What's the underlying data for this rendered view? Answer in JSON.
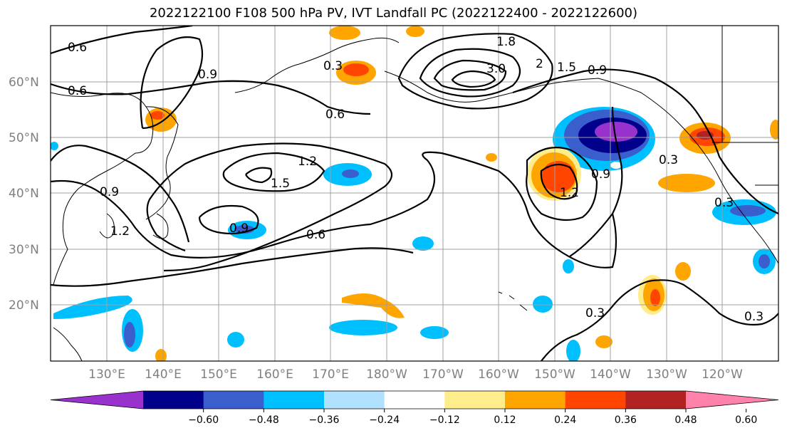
{
  "title": "2022122100 F108 500 hPa PV, IVT Landfall PC (2022122400 - 2022122600)",
  "map": {
    "lat_labels": [
      "60°N",
      "50°N",
      "40°N",
      "30°N",
      "20°N"
    ],
    "lon_labels": [
      "130°E",
      "140°E",
      "150°E",
      "160°E",
      "170°E",
      "180°W",
      "170°W",
      "160°W",
      "150°W",
      "140°W",
      "130°W",
      "120°W"
    ],
    "contour_labels": [
      "0.6",
      "0.6",
      "0.6",
      "0.6",
      "0.3",
      "0.9",
      "0.9",
      "0.9",
      "1.2",
      "1.2",
      "1.5",
      "1.5",
      "1.8",
      "3.0",
      "2",
      "0.9",
      "0.3",
      "0.3",
      "0.3",
      "0.9",
      "1.2",
      "0.3"
    ]
  },
  "colorbar": {
    "ticks": [
      "−0.60",
      "−0.48",
      "−0.36",
      "−0.24",
      "−0.12",
      "0.12",
      "0.24",
      "0.36",
      "0.48",
      "0.60"
    ],
    "colors": [
      "#9932cc",
      "#00008b",
      "#3a5fcd",
      "#00bfff",
      "#b0e2ff",
      "#ffffff",
      "#ffec8b",
      "#ffa500",
      "#ff4500",
      "#b22222",
      "#ff82ab"
    ]
  }
}
